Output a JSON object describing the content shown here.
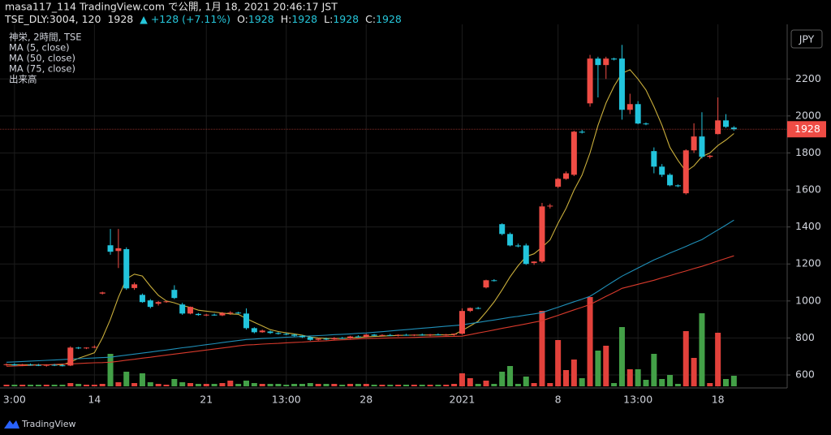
{
  "header": {
    "published": "masa117_114 TradingView.com で公開, 1月 18, 2021 20:46:17 JST",
    "symbol": "TSE_DLY:3004, 120",
    "price": 1928,
    "change": "▲ +128 (+7.11%)",
    "ohlc": [
      {
        "label": "O:",
        "value": 1928
      },
      {
        "label": "H:",
        "value": 1928
      },
      {
        "label": "L:",
        "value": 1928
      },
      {
        "label": "C:",
        "value": 1928
      }
    ]
  },
  "chart_data": {
    "type": "candlestick",
    "title": "神栄, 2時間, TSE",
    "currency": "JPY",
    "volume_name": "出来高",
    "categories": [
      null,
      "3:00",
      null,
      null,
      null,
      null,
      null,
      null,
      null,
      null,
      null,
      "14",
      null,
      null,
      null,
      null,
      null,
      null,
      null,
      null,
      null,
      null,
      null,
      null,
      null,
      "21",
      null,
      null,
      null,
      null,
      null,
      null,
      null,
      null,
      null,
      "13:00",
      null,
      null,
      null,
      null,
      null,
      null,
      null,
      null,
      null,
      "28",
      null,
      null,
      null,
      null,
      null,
      null,
      null,
      null,
      null,
      null,
      null,
      "2021",
      null,
      null,
      null,
      null,
      null,
      null,
      null,
      null,
      null,
      null,
      null,
      "8",
      null,
      null,
      null,
      null,
      null,
      null,
      null,
      null,
      null,
      "13:00",
      null,
      null,
      null,
      null,
      null,
      null,
      null,
      null,
      null,
      "18",
      null,
      null
    ],
    "open": [
      655,
      658,
      652,
      656,
      654,
      650,
      655,
      652,
      651,
      748,
      745,
      748,
      1040,
      1301,
      1270,
      1280,
      1070,
      1033,
      1003,
      985,
      994,
      1060,
      981,
      932,
      930,
      924,
      926,
      922,
      935,
      937,
      932,
      853,
      831,
      835,
      827,
      822,
      818,
      812,
      804,
      790,
      796,
      793,
      800,
      798,
      808,
      806,
      818,
      812,
      816,
      813,
      817,
      815,
      818,
      816,
      819,
      816,
      818,
      823,
      946,
      962,
      1073,
      1112,
      1415,
      1362,
      1300,
      1300,
      1205,
      1213,
      1511,
      1617,
      1660,
      1682,
      1915,
      2068,
      2310,
      2275,
      2310,
      2310,
      2033,
      2064,
      1959,
      1810,
      1726,
      1682,
      1625,
      1582,
      1814,
      1889,
      1779,
      1902,
      1976,
      1937
    ],
    "high": [
      662,
      663,
      660,
      662,
      660,
      658,
      660,
      658,
      755,
      752,
      750,
      760,
      1050,
      1389,
      1389,
      1290,
      1100,
      1040,
      1010,
      1000,
      1000,
      1085,
      990,
      970,
      935,
      930,
      932,
      940,
      945,
      942,
      960,
      858,
      845,
      840,
      832,
      828,
      822,
      816,
      808,
      800,
      802,
      805,
      806,
      812,
      815,
      822,
      822,
      820,
      822,
      820,
      822,
      820,
      824,
      822,
      825,
      822,
      824,
      960,
      965,
      968,
      1115,
      1118,
      1420,
      1370,
      1310,
      1310,
      1215,
      1530,
      1525,
      1665,
      1700,
      1920,
      1925,
      2330,
      2320,
      2320,
      2315,
      2384,
      2120,
      2080,
      1965,
      1830,
      1740,
      1690,
      1630,
      1820,
      1960,
      2020,
      1790,
      2100,
      2010,
      1945
    ],
    "low": [
      650,
      650,
      648,
      650,
      648,
      645,
      648,
      646,
      648,
      740,
      740,
      745,
      1035,
      1250,
      1178,
      1060,
      1060,
      990,
      960,
      975,
      990,
      1010,
      925,
      928,
      920,
      918,
      920,
      918,
      925,
      930,
      845,
      825,
      828,
      822,
      818,
      815,
      808,
      800,
      785,
      786,
      788,
      790,
      795,
      795,
      802,
      803,
      810,
      808,
      810,
      808,
      812,
      810,
      812,
      810,
      814,
      812,
      812,
      818,
      940,
      955,
      1068,
      1105,
      1355,
      1295,
      1290,
      1195,
      1195,
      1205,
      1500,
      1610,
      1655,
      1675,
      1905,
      2050,
      2100,
      2200,
      2300,
      1980,
      2010,
      1955,
      1950,
      1690,
      1670,
      1620,
      1615,
      1575,
      1800,
      1770,
      1770,
      1900,
      1935,
      1920
    ],
    "close": [
      658,
      652,
      656,
      654,
      650,
      655,
      652,
      650,
      748,
      745,
      748,
      752,
      1046,
      1266,
      1285,
      1068,
      1090,
      994,
      968,
      994,
      998,
      1016,
      932,
      968,
      924,
      926,
      922,
      935,
      937,
      934,
      853,
      831,
      840,
      827,
      822,
      818,
      812,
      804,
      790,
      796,
      793,
      800,
      798,
      808,
      806,
      818,
      812,
      816,
      813,
      817,
      815,
      818,
      816,
      819,
      816,
      818,
      823,
      946,
      962,
      960,
      1112,
      1110,
      1362,
      1300,
      1295,
      1200,
      1213,
      1511,
      1515,
      1660,
      1690,
      1915,
      1910,
      2310,
      2275,
      2310,
      2305,
      2033,
      2064,
      1959,
      1955,
      1726,
      1682,
      1625,
      1620,
      1814,
      1889,
      1779,
      1785,
      1976,
      1941,
      1928
    ],
    "volume": [
      2,
      2,
      2,
      2,
      2,
      2,
      2,
      2,
      4,
      3,
      2,
      2,
      3,
      40,
      5,
      18,
      4,
      16,
      5,
      3,
      2,
      9,
      5,
      4,
      3,
      3,
      3,
      4,
      7,
      3,
      7,
      4,
      3,
      3,
      3,
      2,
      3,
      3,
      4,
      3,
      3,
      3,
      2,
      3,
      3,
      3,
      2,
      2,
      2,
      2,
      2,
      2,
      2,
      2,
      2,
      2,
      3,
      16,
      10,
      3,
      7,
      3,
      18,
      25,
      3,
      12,
      4,
      93,
      4,
      57,
      20,
      33,
      10,
      110,
      44,
      50,
      4,
      73,
      21,
      21,
      8,
      40,
      9,
      14,
      3,
      68,
      35,
      90,
      4,
      66,
      9,
      13
    ],
    "series": [
      {
        "name": "MA (5, close)",
        "color": "#c9ae3b",
        "values": [
          655,
          655,
          655,
          655,
          655,
          655,
          655,
          655,
          670,
          690,
          705,
          720,
          800,
          900,
          1020,
          1120,
          1145,
          1135,
          1080,
          1030,
          1000,
          990,
          975,
          965,
          950,
          945,
          940,
          935,
          930,
          928,
          905,
          885,
          865,
          845,
          835,
          828,
          822,
          815,
          805,
          800,
          798,
          797,
          797,
          800,
          803,
          806,
          808,
          810,
          812,
          814,
          815,
          815,
          816,
          816,
          817,
          817,
          818,
          840,
          865,
          890,
          940,
          995,
          1060,
          1130,
          1190,
          1240,
          1255,
          1290,
          1330,
          1420,
          1500,
          1600,
          1680,
          1800,
          1950,
          2070,
          2160,
          2230,
          2250,
          2200,
          2140,
          2050,
          1950,
          1830,
          1760,
          1700,
          1730,
          1780,
          1800,
          1840,
          1870,
          1905
        ]
      },
      {
        "name": "MA (50, close)",
        "color": "#1f8fb8",
        "values": [
          669,
          671,
          673,
          675,
          677,
          679,
          681,
          683,
          686,
          688,
          690,
          692,
          694,
          696,
          702,
          707,
          713,
          718,
          724,
          730,
          735,
          741,
          747,
          752,
          758,
          764,
          769,
          775,
          781,
          786,
          792,
          794,
          797,
          799,
          801,
          804,
          806,
          808,
          811,
          813,
          815,
          818,
          820,
          822,
          825,
          827,
          831,
          834,
          838,
          842,
          845,
          849,
          853,
          856,
          860,
          864,
          867,
          871,
          878,
          884,
          891,
          897,
          904,
          911,
          917,
          924,
          930,
          937,
          952,
          966,
          981,
          996,
          1010,
          1025,
          1052,
          1080,
          1107,
          1134,
          1156,
          1178,
          1200,
          1222,
          1240,
          1259,
          1277,
          1295,
          1314,
          1332,
          1358,
          1384,
          1410,
          1437
        ]
      },
      {
        "name": "MA (75, close)",
        "color": "#d83a2c",
        "values": [
          647,
          649,
          650,
          652,
          654,
          655,
          657,
          659,
          660,
          662,
          664,
          666,
          667,
          669,
          674,
          680,
          685,
          691,
          696,
          702,
          707,
          713,
          718,
          724,
          729,
          735,
          740,
          746,
          751,
          757,
          762,
          764,
          767,
          769,
          771,
          774,
          776,
          778,
          781,
          783,
          785,
          788,
          790,
          792,
          795,
          797,
          798,
          799,
          800,
          801,
          802,
          803,
          805,
          806,
          807,
          808,
          809,
          810,
          818,
          827,
          835,
          843,
          852,
          860,
          868,
          876,
          885,
          893,
          908,
          922,
          937,
          952,
          966,
          981,
          1003,
          1025,
          1046,
          1068,
          1079,
          1090,
          1101,
          1112,
          1125,
          1137,
          1150,
          1162,
          1175,
          1187,
          1201,
          1216,
          1230,
          1244
        ]
      }
    ],
    "up_color": "#ef4c45",
    "down_color": "#22c4dc",
    "volume_up_color": "#e2413b",
    "volume_down_color": "#43a047",
    "last_price": 1928,
    "ylim": [
      530,
      2495
    ],
    "yticks": [
      600,
      800,
      1000,
      1200,
      1400,
      1600,
      1800,
      2000,
      2200
    ],
    "grid": true
  }
}
